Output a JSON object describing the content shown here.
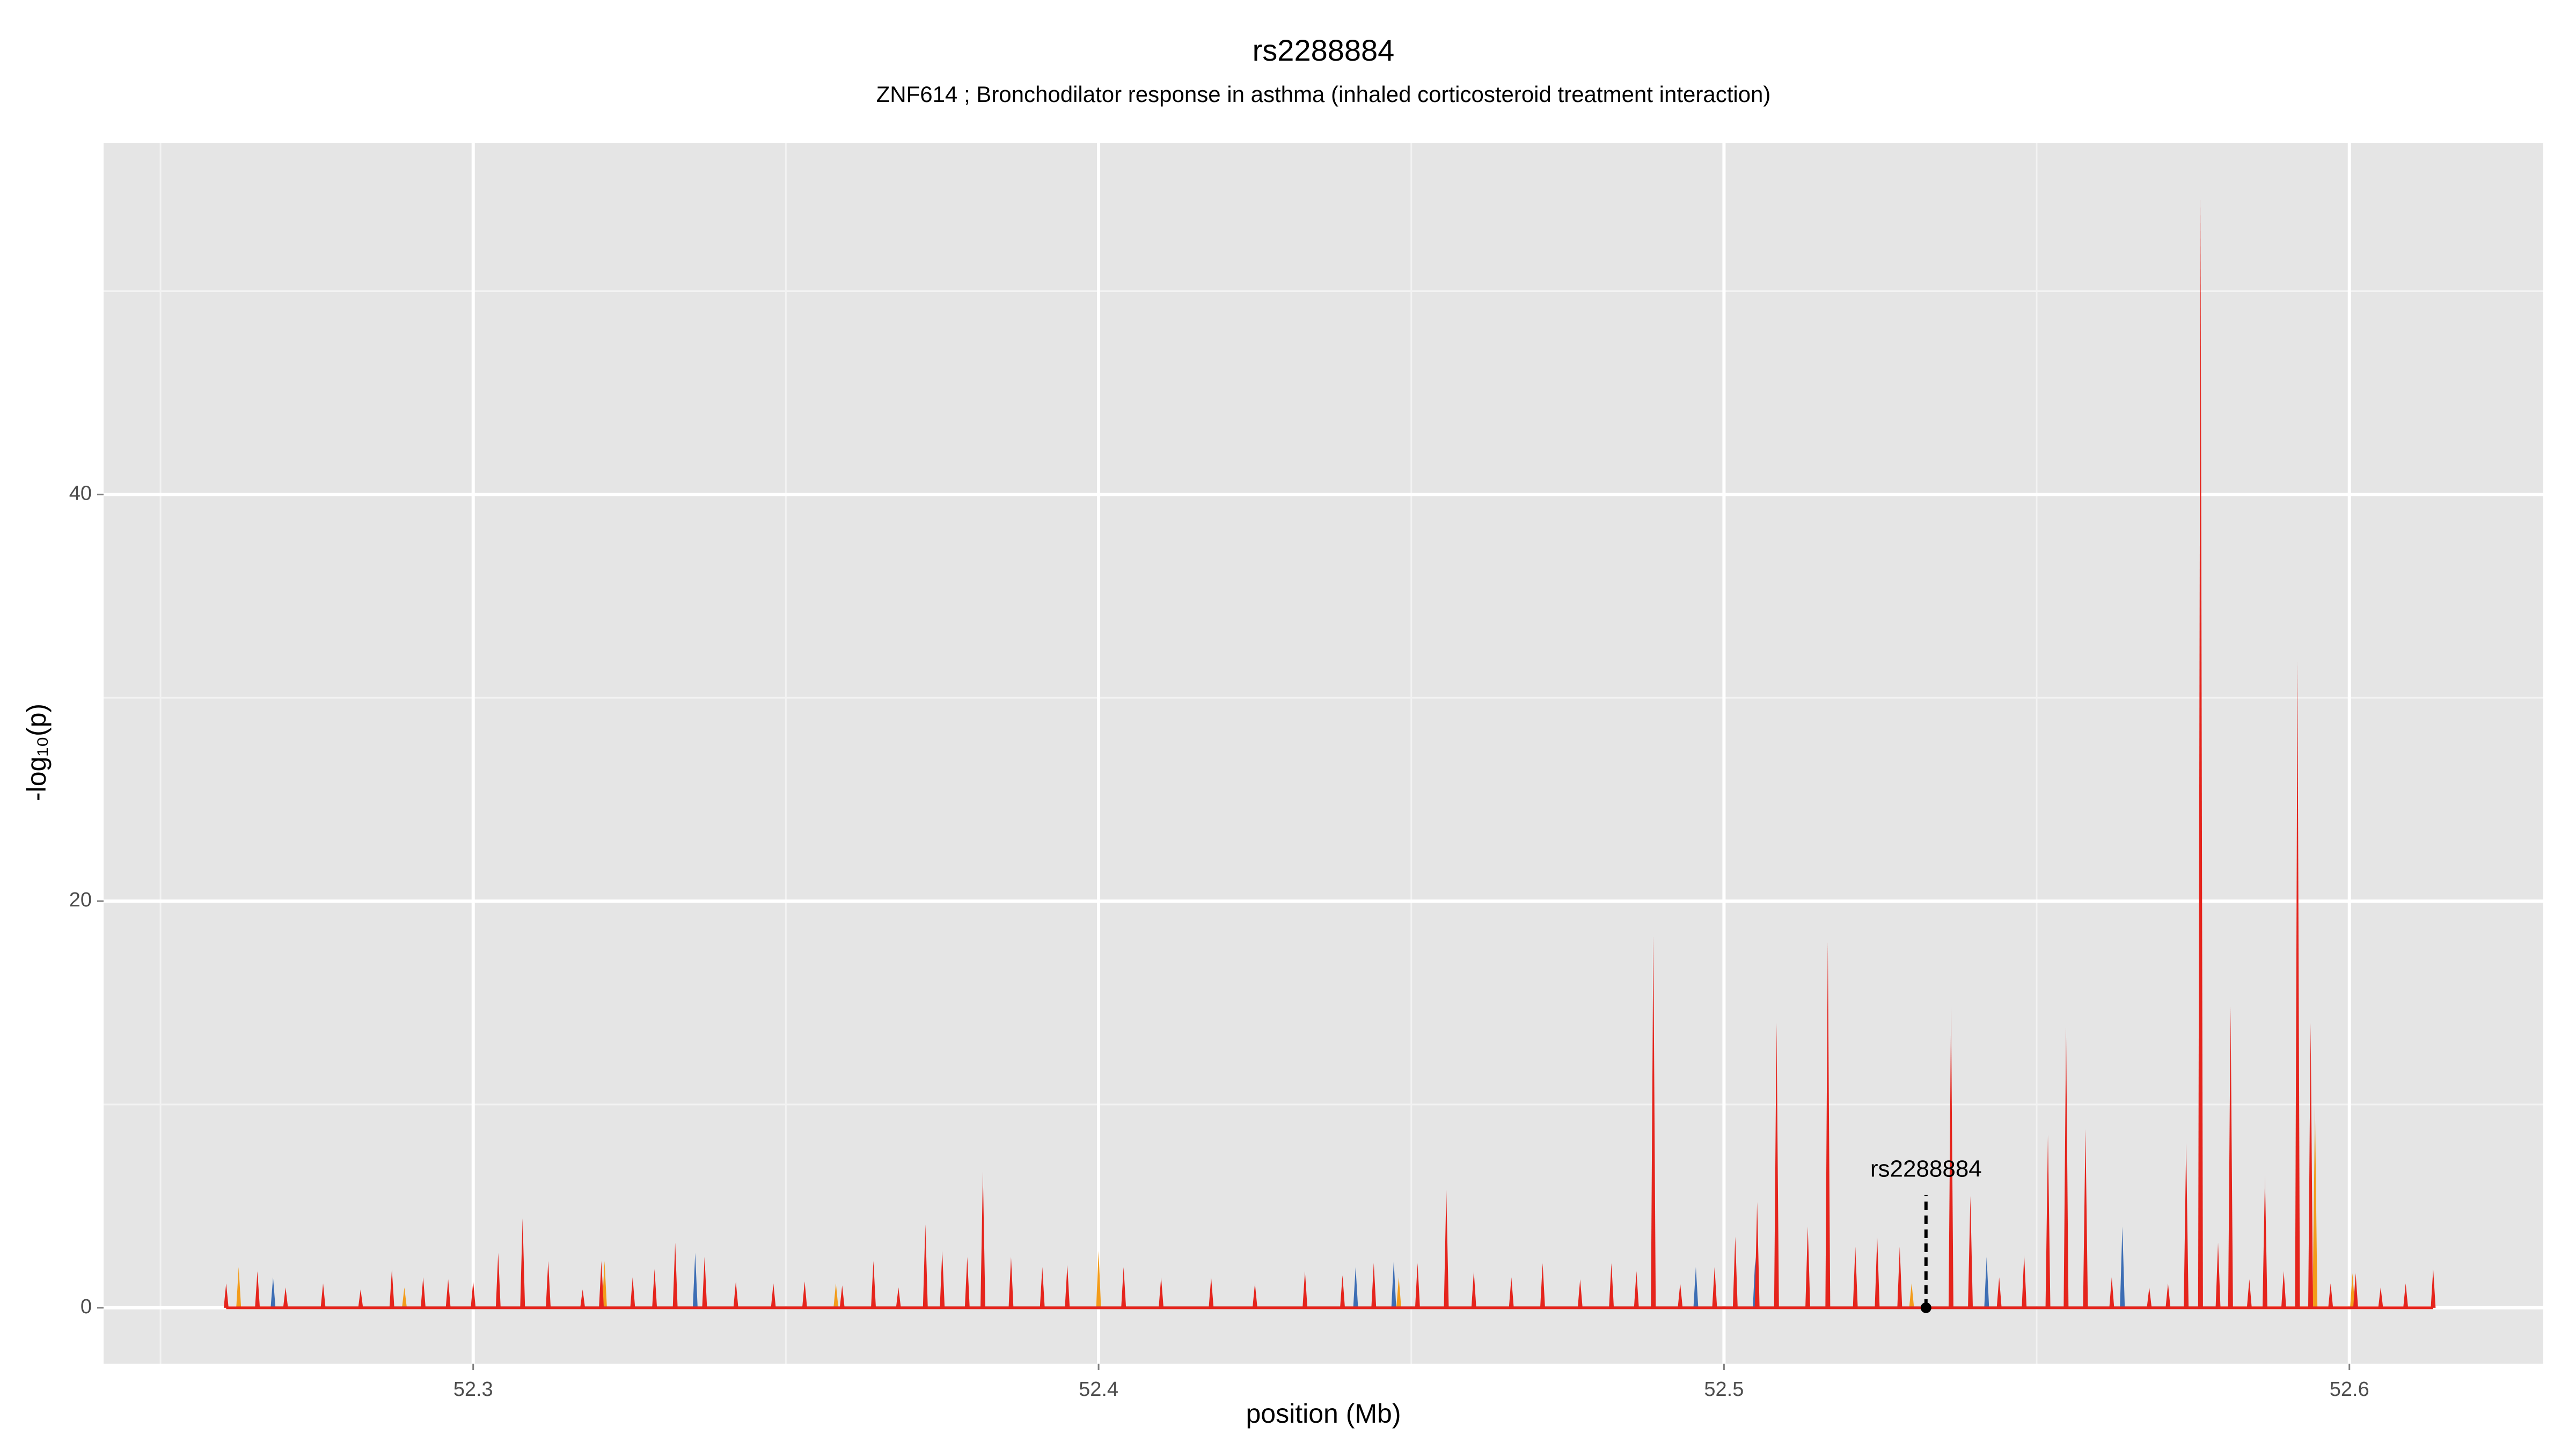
{
  "chart_data": {
    "type": "spike-area",
    "title": "rs2288884",
    "subtitle": "ZNF614 ; Bronchodilator response in asthma (inhaled corticosteroid treatment interaction)",
    "x_label": "position (Mb)",
    "y_label": "-log₁₀(p)",
    "xlim": [
      52.2409,
      52.631
    ],
    "ylim": [
      -2.75,
      57.3
    ],
    "xticks": [
      52.3,
      52.4,
      52.5,
      52.6
    ],
    "yticks": [
      0,
      20,
      40
    ],
    "x_minor_grid": [
      52.25,
      52.35,
      52.45,
      52.55
    ],
    "y_minor_grid": [
      10,
      30,
      50
    ],
    "grid": true,
    "series": [
      {
        "name": "orange",
        "color": "#f39c1a",
        "x": [
          52.2625,
          52.289,
          52.321,
          52.358,
          52.4,
          52.448,
          52.53,
          52.5945,
          52.6005
        ],
        "values": [
          2.0,
          1.0,
          2.3,
          1.2,
          2.8,
          1.5,
          1.2,
          10.0,
          1.7
        ]
      },
      {
        "name": "blue",
        "color": "#3c6db4",
        "x": [
          52.268,
          52.312,
          52.3355,
          52.4411,
          52.4472,
          52.4955,
          52.505,
          52.542,
          52.5637,
          52.579
        ],
        "values": [
          1.5,
          1.4,
          2.7,
          2.0,
          2.3,
          2.0,
          2.5,
          2.5,
          4.0,
          1.5
        ]
      },
      {
        "name": "red",
        "color": "#e5241c",
        "x": [
          52.2605,
          52.2655,
          52.27,
          52.276,
          52.282,
          52.287,
          52.292,
          52.296,
          52.3,
          52.304,
          52.3079,
          52.312,
          52.3175,
          52.3205,
          52.3255,
          52.329,
          52.3323,
          52.337,
          52.342,
          52.348,
          52.353,
          52.359,
          52.364,
          52.368,
          52.3723,
          52.375,
          52.379,
          52.3815,
          52.386,
          52.391,
          52.395,
          52.404,
          52.41,
          52.418,
          52.425,
          52.433,
          52.439,
          52.444,
          52.451,
          52.4556,
          52.46,
          52.466,
          52.471,
          52.477,
          52.482,
          52.486,
          52.4887,
          52.493,
          52.4985,
          52.5018,
          52.5053,
          52.5084,
          52.5134,
          52.5166,
          52.521,
          52.5245,
          52.5281,
          52.5363,
          52.5394,
          52.544,
          52.548,
          52.5518,
          52.5547,
          52.5578,
          52.562,
          52.568,
          52.571,
          52.5739,
          52.5762,
          52.579,
          52.581,
          52.584,
          52.5865,
          52.5895,
          52.5917,
          52.5938,
          52.597,
          52.601,
          52.605,
          52.609,
          52.6134
        ],
        "values": [
          1.2,
          1.8,
          1.0,
          1.2,
          0.9,
          1.9,
          1.5,
          1.4,
          1.3,
          2.7,
          4.4,
          2.3,
          0.9,
          2.3,
          1.5,
          1.9,
          3.2,
          2.5,
          1.3,
          1.2,
          1.3,
          1.1,
          2.3,
          1.0,
          4.1,
          2.8,
          2.5,
          6.7,
          2.5,
          2.0,
          2.1,
          2.0,
          1.5,
          1.5,
          1.2,
          1.8,
          1.6,
          2.2,
          2.2,
          5.8,
          1.8,
          1.5,
          2.2,
          1.4,
          2.2,
          1.8,
          18.3,
          1.2,
          2.0,
          3.5,
          5.2,
          14.0,
          4.0,
          18.0,
          3.0,
          3.5,
          3.0,
          14.8,
          5.5,
          1.5,
          2.6,
          8.5,
          13.8,
          8.8,
          1.5,
          1.0,
          1.2,
          8.1,
          54.5,
          3.2,
          14.8,
          1.4,
          6.5,
          1.8,
          31.8,
          14.0,
          1.2,
          1.7,
          1.0,
          1.2,
          1.9
        ]
      }
    ],
    "annotation": {
      "text": "rs2288884",
      "x": 52.5323,
      "y": 0
    }
  }
}
